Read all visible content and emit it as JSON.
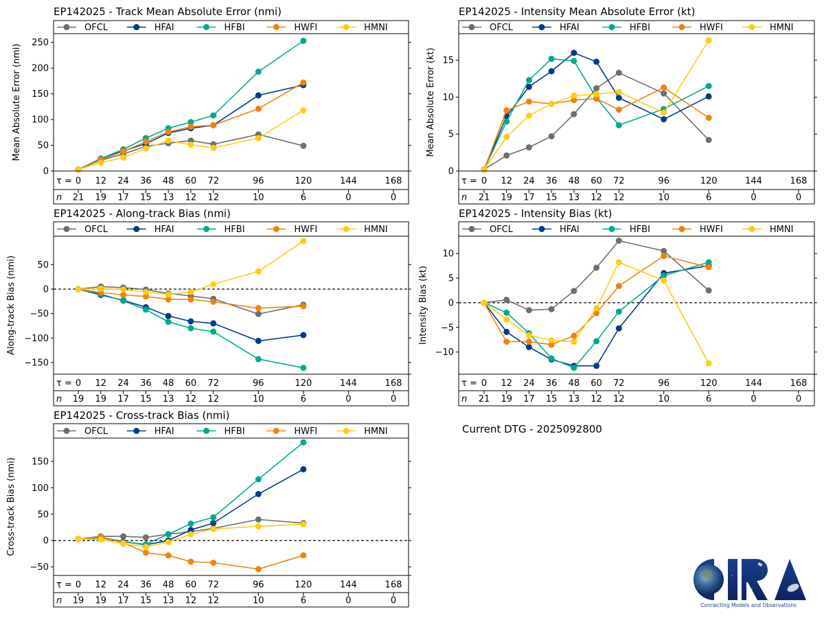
{
  "storm_id": "EP142025",
  "current_dtg_label": "Current DTG - 2025092800",
  "logo": {
    "text": "CIRA",
    "tagline": "Connecting Models and Observations"
  },
  "series_styles": [
    {
      "name": "OFCL",
      "color": "#6e6e6e"
    },
    {
      "name": "HFAI",
      "color": "#003a8c"
    },
    {
      "name": "HFBI",
      "color": "#00a98f"
    },
    {
      "name": "HWFI",
      "color": "#f0820f"
    },
    {
      "name": "HMNI",
      "color": "#ffcc11"
    }
  ],
  "chart_data": [
    {
      "id": "track-mae",
      "type": "line",
      "title": "EP142025 - Track Mean Absolute Error (nmi)",
      "ylabel": "Mean Absolute Error (nmi)",
      "xlabel": "τ",
      "tau_label": "τ = ",
      "n_label": "n",
      "x": [
        0,
        12,
        24,
        36,
        48,
        60,
        72,
        96,
        120
      ],
      "tau_ticks": [
        0,
        12,
        24,
        36,
        48,
        60,
        72,
        96,
        120,
        144,
        168
      ],
      "n_counts": [
        21,
        19,
        17,
        15,
        13,
        12,
        12,
        10,
        6,
        0,
        0
      ],
      "yticks": [
        0,
        50,
        100,
        150,
        200,
        250
      ],
      "ylim": [
        0,
        267
      ],
      "zero_line": false,
      "legend": "top",
      "series": [
        {
          "name": "OFCL",
          "values": [
            3,
            21,
            33,
            48,
            54,
            59,
            52,
            71,
            49
          ]
        },
        {
          "name": "HFAI",
          "values": [
            3,
            24,
            39,
            53,
            74,
            83,
            89,
            147,
            167
          ]
        },
        {
          "name": "HFBI",
          "values": [
            3,
            24,
            42,
            64,
            83,
            95,
            108,
            193,
            253
          ]
        },
        {
          "name": "HWFI",
          "values": [
            3,
            22,
            38,
            57,
            76,
            86,
            89,
            121,
            172
          ]
        },
        {
          "name": "HMNI",
          "values": [
            3,
            16,
            26,
            44,
            59,
            51,
            45,
            64,
            118
          ]
        }
      ]
    },
    {
      "id": "intensity-mae",
      "type": "line",
      "title": "EP142025 - Intensity Mean Absolute Error (kt)",
      "ylabel": "Mean Absolute Error (kt)",
      "xlabel": "τ",
      "tau_label": "τ = ",
      "n_label": "n",
      "x": [
        0,
        12,
        24,
        36,
        48,
        60,
        72,
        96,
        120
      ],
      "tau_ticks": [
        0,
        12,
        24,
        36,
        48,
        60,
        72,
        96,
        120,
        144,
        168
      ],
      "n_counts": [
        21,
        19,
        17,
        15,
        13,
        12,
        12,
        10,
        6,
        0,
        0
      ],
      "yticks": [
        0,
        5,
        10,
        15
      ],
      "ylim": [
        0,
        18.6
      ],
      "zero_line": false,
      "legend": "top",
      "series": [
        {
          "name": "OFCL",
          "values": [
            0.2,
            2.1,
            3.2,
            4.7,
            7.7,
            11.2,
            13.3,
            10.5,
            4.2
          ]
        },
        {
          "name": "HFAI",
          "values": [
            0.2,
            7.4,
            11.4,
            13.5,
            16.0,
            14.8,
            9.9,
            7.0,
            10.1
          ]
        },
        {
          "name": "HFBI",
          "values": [
            0.2,
            6.7,
            12.3,
            15.2,
            14.9,
            9.9,
            6.2,
            8.4,
            11.5
          ]
        },
        {
          "name": "HWFI",
          "values": [
            0.2,
            8.2,
            9.4,
            9.1,
            9.6,
            9.8,
            8.3,
            11.3,
            7.2
          ]
        },
        {
          "name": "HMNI",
          "values": [
            0.2,
            4.6,
            7.5,
            9.1,
            10.2,
            10.4,
            10.7,
            7.9,
            17.7
          ]
        }
      ]
    },
    {
      "id": "along-track-bias",
      "type": "line",
      "title": "EP142025 - Along-track Bias (nmi)",
      "ylabel": "Along-track Bias (nmi)",
      "xlabel": "τ",
      "tau_label": "τ = ",
      "n_label": "n",
      "x": [
        0,
        12,
        24,
        36,
        48,
        60,
        72,
        96,
        120
      ],
      "tau_ticks": [
        0,
        12,
        24,
        36,
        48,
        60,
        72,
        96,
        120,
        144,
        168
      ],
      "n_counts": [
        19,
        19,
        17,
        15,
        13,
        12,
        12,
        10,
        6,
        0,
        0
      ],
      "yticks": [
        -150,
        -100,
        -50,
        0,
        50
      ],
      "ylim": [
        -174,
        108
      ],
      "zero_line": true,
      "legend": "top",
      "series": [
        {
          "name": "OFCL",
          "values": [
            0,
            5,
            3,
            -1,
            -9,
            -14,
            -20,
            -51,
            -32
          ]
        },
        {
          "name": "HFAI",
          "values": [
            0,
            -12,
            -23,
            -37,
            -55,
            -66,
            -70,
            -106,
            -94
          ]
        },
        {
          "name": "HFBI",
          "values": [
            0,
            -10,
            -24,
            -42,
            -67,
            -80,
            -87,
            -143,
            -161
          ]
        },
        {
          "name": "HWFI",
          "values": [
            0,
            -7,
            -12,
            -15,
            -21,
            -21,
            -26,
            -39,
            -35
          ]
        },
        {
          "name": "HMNI",
          "values": [
            0,
            1,
            -1,
            -6,
            -11,
            -6,
            10,
            36,
            98
          ]
        }
      ]
    },
    {
      "id": "intensity-bias",
      "type": "line",
      "title": "EP142025 - Intensity Bias (kt)",
      "ylabel": "Intensity Bias (kt)",
      "xlabel": "τ",
      "tau_label": "τ = ",
      "n_label": "n",
      "x": [
        0,
        12,
        24,
        36,
        48,
        60,
        72,
        96,
        120
      ],
      "tau_ticks": [
        0,
        12,
        24,
        36,
        48,
        60,
        72,
        96,
        120,
        144,
        168
      ],
      "n_counts": [
        21,
        19,
        17,
        15,
        13,
        12,
        12,
        10,
        6,
        0,
        0
      ],
      "yticks": [
        -10,
        -5,
        0,
        5,
        10
      ],
      "ylim": [
        -14.5,
        13.5
      ],
      "zero_line": true,
      "legend": "top",
      "series": [
        {
          "name": "OFCL",
          "values": [
            0,
            0.6,
            -1.5,
            -1.3,
            2.4,
            7.1,
            12.6,
            10.5,
            2.5
          ]
        },
        {
          "name": "HFAI",
          "values": [
            0,
            -5.9,
            -9.0,
            -11.5,
            -12.8,
            -12.8,
            -5.2,
            6.0,
            7.5
          ]
        },
        {
          "name": "HFBI",
          "values": [
            0,
            -2.0,
            -6.2,
            -11.3,
            -13.2,
            -7.8,
            -1.8,
            5.5,
            8.2
          ]
        },
        {
          "name": "HWFI",
          "values": [
            0,
            -7.9,
            -7.9,
            -8.5,
            -6.7,
            -2.1,
            3.4,
            9.5,
            7.2
          ]
        },
        {
          "name": "HMNI",
          "values": [
            0,
            -3.4,
            -6.6,
            -7.6,
            -7.9,
            -1.1,
            8.2,
            4.5,
            -12.3
          ]
        }
      ]
    },
    {
      "id": "cross-track-bias",
      "type": "line",
      "title": "EP142025 - Cross-track Bias (nmi)",
      "ylabel": "Cross-track Bias (nmi)",
      "xlabel": "τ",
      "tau_label": "τ = ",
      "n_label": "n",
      "x": [
        0,
        12,
        24,
        36,
        48,
        60,
        72,
        96,
        120
      ],
      "tau_ticks": [
        0,
        12,
        24,
        36,
        48,
        60,
        72,
        96,
        120,
        144,
        168
      ],
      "n_counts": [
        19,
        19,
        17,
        15,
        13,
        12,
        12,
        10,
        6,
        0,
        0
      ],
      "yticks": [
        -50,
        0,
        50,
        100,
        150
      ],
      "ylim": [
        -66,
        194
      ],
      "zero_line": true,
      "legend": "top",
      "series": [
        {
          "name": "OFCL",
          "values": [
            3,
            8,
            8,
            6,
            12,
            17,
            23,
            40,
            33
          ]
        },
        {
          "name": "HFAI",
          "values": [
            3,
            6,
            -2,
            -8,
            0,
            20,
            33,
            88,
            135
          ]
        },
        {
          "name": "HFBI",
          "values": [
            3,
            5,
            -3,
            -7,
            12,
            32,
            44,
            116,
            186
          ]
        },
        {
          "name": "HWFI",
          "values": [
            3,
            7,
            -4,
            -23,
            -28,
            -40,
            -42,
            -54,
            -28
          ]
        },
        {
          "name": "HMNI",
          "values": [
            3,
            2,
            -6,
            -12,
            -3,
            12,
            22,
            27,
            31
          ]
        }
      ]
    }
  ]
}
